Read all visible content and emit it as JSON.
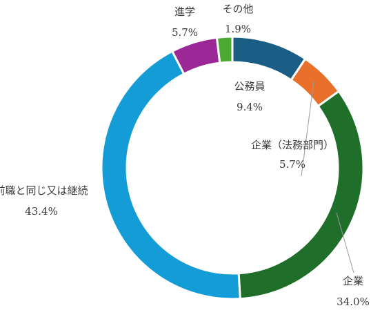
{
  "chart_data": {
    "type": "pie",
    "variant": "donut",
    "start_angle_deg": 0,
    "direction": "clockwise",
    "slices": [
      {
        "label": "公務員",
        "value": 9.4,
        "display": "9.4%",
        "color": "#1a5e86"
      },
      {
        "label": "企業（法務部門）",
        "value": 5.7,
        "display": "5.7%",
        "color": "#e8702a"
      },
      {
        "label": "企業",
        "value": 34.0,
        "display": "34.0%",
        "color": "#1f6e2a"
      },
      {
        "label": "前職と同じ又は継続",
        "value": 43.4,
        "display": "43.4%",
        "color": "#139cd6"
      },
      {
        "label": "進学",
        "value": 5.7,
        "display": "5.7%",
        "color": "#9c2796"
      },
      {
        "label": "その他",
        "value": 1.9,
        "display": "1.9%",
        "color": "#4ea932"
      }
    ]
  }
}
